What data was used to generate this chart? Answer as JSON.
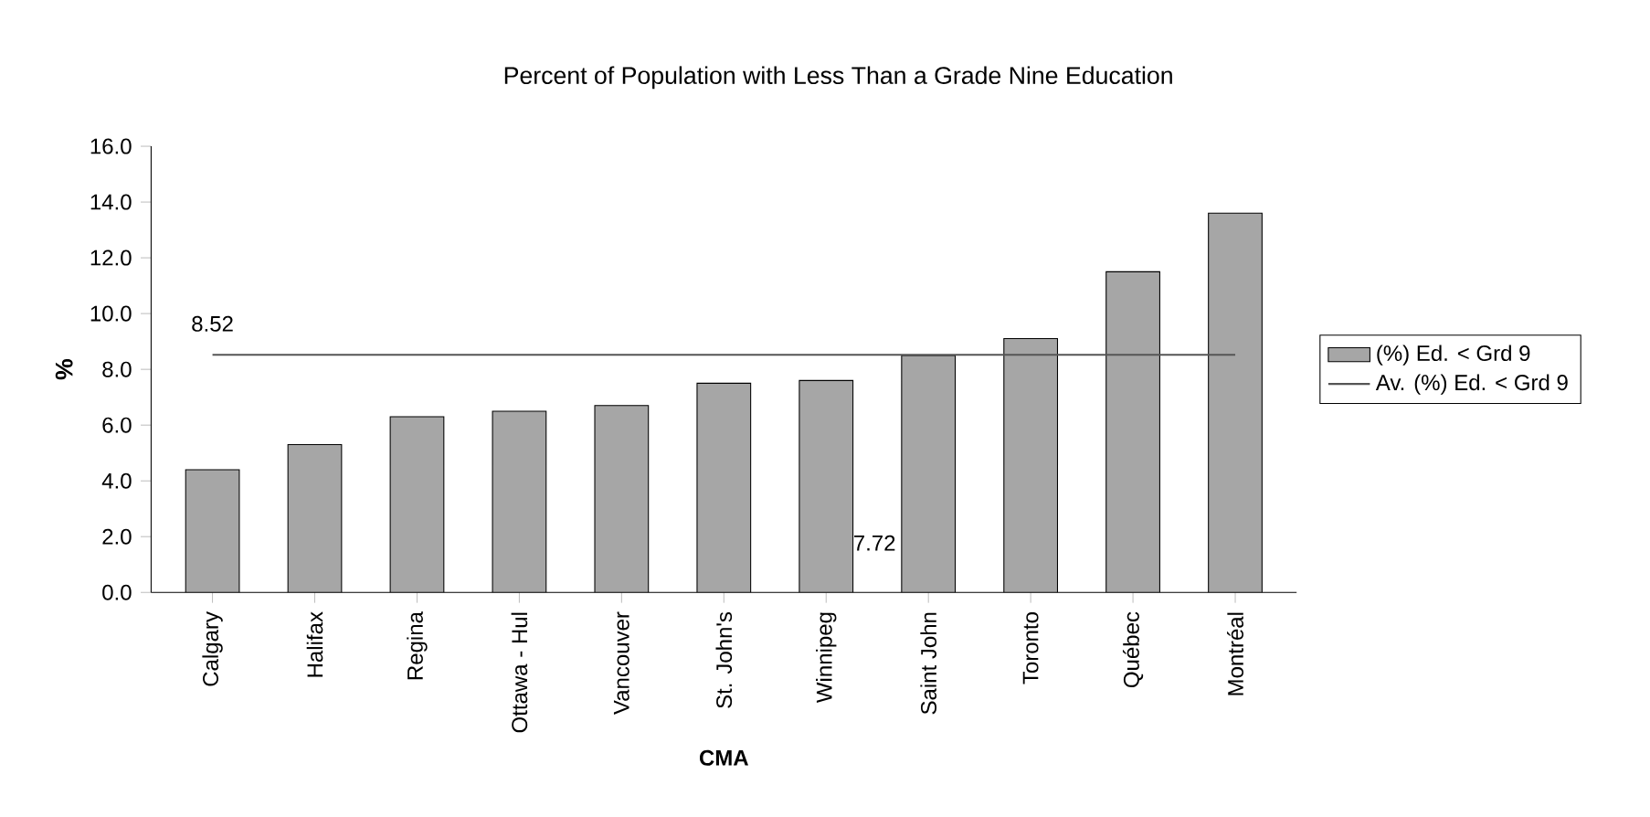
{
  "chart_data": {
    "type": "bar",
    "title": "Percent of Population with Less Than a Grade Nine Education",
    "xlabel": "CMA",
    "ylabel": "%",
    "categories": [
      "Calgary",
      "Halifax",
      "Regina",
      "Ottawa - Hul",
      "Vancouver",
      "St. John's",
      "Winnipeg",
      "Saint John",
      "Toronto",
      "Québec",
      "Montréal"
    ],
    "series": [
      {
        "name": "(%) Ed. < Grd 9",
        "color": "#a6a6a6",
        "values": [
          4.4,
          5.3,
          6.3,
          6.5,
          6.7,
          7.5,
          7.6,
          8.5,
          9.1,
          11.5,
          13.6
        ]
      },
      {
        "name": "Av. (%) Ed. < Grd 9",
        "type": "line",
        "color": "#555555",
        "values": [
          8.52,
          8.52,
          8.52,
          8.52,
          8.52,
          8.52,
          8.52,
          8.52,
          8.52,
          8.52,
          8.52
        ],
        "value_labels": [
          "8.52",
          null,
          null,
          null,
          null,
          null,
          null,
          null,
          null,
          null,
          null
        ]
      }
    ],
    "annotations": [
      "7.72"
    ],
    "ylim": [
      0,
      16
    ],
    "yticks": [
      {
        "value": 0,
        "label": "0.0"
      },
      {
        "value": 2,
        "label": "2.0"
      },
      {
        "value": 4,
        "label": "4.0"
      },
      {
        "value": 6,
        "label": "6.0"
      },
      {
        "value": 8,
        "label": "8.0"
      },
      {
        "value": 10,
        "label": "10.0"
      },
      {
        "value": 12,
        "label": "12.0"
      },
      {
        "value": 14,
        "label": "14.0"
      },
      {
        "value": 16,
        "label": "16.0"
      }
    ],
    "grid": false,
    "legend": "right"
  }
}
